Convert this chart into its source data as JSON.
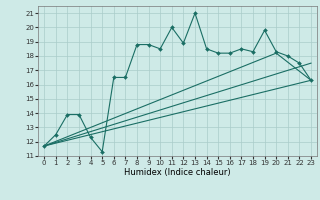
{
  "xlabel": "Humidex (Indice chaleur)",
  "background_color": "#ceeae7",
  "grid_color": "#aaccca",
  "line_color": "#1a6e64",
  "xlim": [
    -0.5,
    23.5
  ],
  "ylim": [
    11,
    21.5
  ],
  "xticks": [
    0,
    1,
    2,
    3,
    4,
    5,
    6,
    7,
    8,
    9,
    10,
    11,
    12,
    13,
    14,
    15,
    16,
    17,
    18,
    19,
    20,
    21,
    22,
    23
  ],
  "yticks": [
    11,
    12,
    13,
    14,
    15,
    16,
    17,
    18,
    19,
    20,
    21
  ],
  "series1_x": [
    0,
    1,
    2,
    3,
    4,
    5,
    6,
    7,
    8,
    9,
    10,
    11,
    12,
    13,
    14,
    15,
    16,
    17,
    18,
    19,
    20,
    21,
    22,
    23
  ],
  "series1_y": [
    11.7,
    12.5,
    13.9,
    13.9,
    12.3,
    11.3,
    16.5,
    16.5,
    18.8,
    18.8,
    18.5,
    20.0,
    18.9,
    21.0,
    18.5,
    18.2,
    18.2,
    18.5,
    18.3,
    19.8,
    18.3,
    18.0,
    17.5,
    16.3
  ],
  "series2_x": [
    0,
    23
  ],
  "series2_y": [
    11.7,
    16.3
  ],
  "series3_x": [
    0,
    23
  ],
  "series3_y": [
    11.7,
    17.5
  ],
  "series4_x": [
    0,
    20,
    23
  ],
  "series4_y": [
    11.7,
    18.2,
    16.3
  ]
}
